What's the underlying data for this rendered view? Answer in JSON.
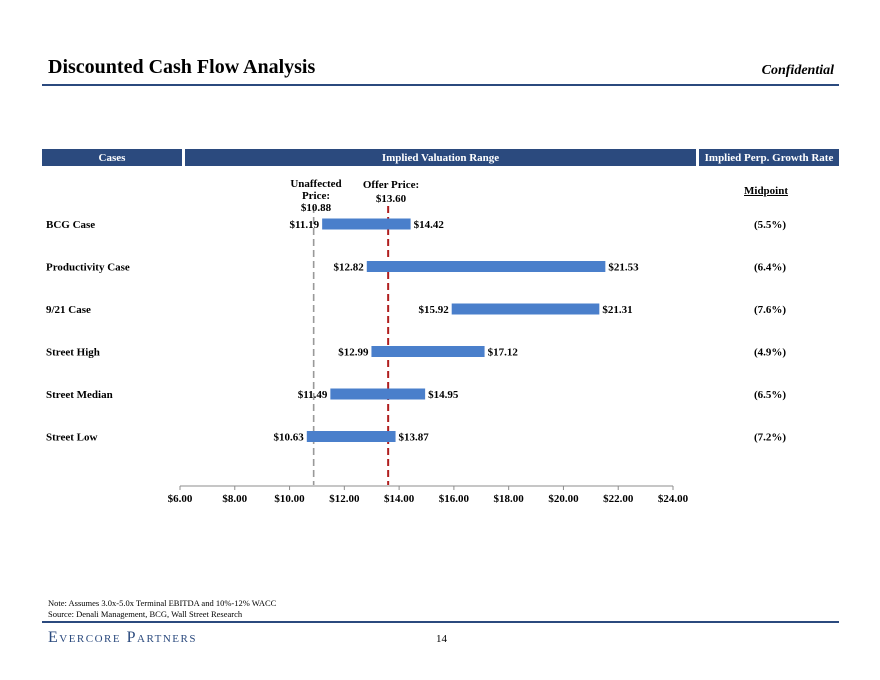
{
  "header": {
    "title": "Discounted Cash Flow Analysis",
    "confidential": "Confidential"
  },
  "table_headers": {
    "cases": "Cases",
    "range": "Implied Valuation Range",
    "growth": "Implied Perp. Growth Rate",
    "midpoint": "Midpoint"
  },
  "reference_lines": {
    "unaffected_label_line1": "Unaffected",
    "unaffected_label_line2": "Price: $10.88",
    "unaffected_value": 10.88,
    "offer_label_line1": "Offer Price:",
    "offer_label_line2": "$13.60",
    "offer_value": 13.6,
    "unaffected_color": "#999999",
    "offer_color": "#b01e1e"
  },
  "chart_data": {
    "type": "bar",
    "orientation": "horizontal-range",
    "title": "",
    "xlabel": "",
    "ylabel": "",
    "xlim": [
      6,
      24
    ],
    "x_ticks": [
      "$6.00",
      "$8.00",
      "$10.00",
      "$12.00",
      "$14.00",
      "$16.00",
      "$18.00",
      "$20.00",
      "$22.00",
      "$24.00"
    ],
    "x_tick_values": [
      6,
      8,
      10,
      12,
      14,
      16,
      18,
      20,
      22,
      24
    ],
    "bar_color": "#4a7fcb",
    "categories": [
      "BCG Case",
      "Productivity Case",
      "9/21 Case",
      "Street High",
      "Street Median",
      "Street Low"
    ],
    "low": [
      11.19,
      12.82,
      15.92,
      12.99,
      11.49,
      10.63
    ],
    "high": [
      14.42,
      21.53,
      21.31,
      17.12,
      14.95,
      13.87
    ],
    "low_labels": [
      "$11.19",
      "$12.82",
      "$15.92",
      "$12.99",
      "$11.49",
      "$10.63"
    ],
    "high_labels": [
      "$14.42",
      "$21.53",
      "$21.31",
      "$17.12",
      "$14.95",
      "$13.87"
    ],
    "growth_rates": [
      "(5.5%)",
      "(6.4%)",
      "(7.6%)",
      "(4.9%)",
      "(6.5%)",
      "(7.2%)"
    ]
  },
  "footer": {
    "note": "Note: Assumes 3.0x-5.0x Terminal EBITDA and 10%-12% WACC",
    "source": "Source: Denali Management, BCG, Wall Street Research",
    "logo": "Evercore Partners",
    "page_number": "14"
  }
}
